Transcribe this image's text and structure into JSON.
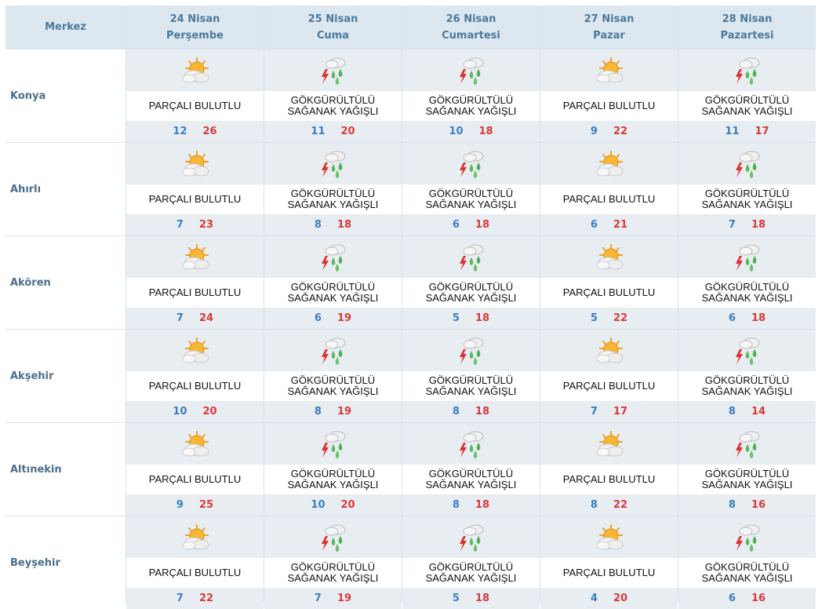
{
  "header": {
    "region": "Merkez",
    "days": [
      {
        "date": "24 Nisan",
        "weekday": "Perşembe"
      },
      {
        "date": "25 Nisan",
        "weekday": "Cuma"
      },
      {
        "date": "26 Nisan",
        "weekday": "Cumartesi"
      },
      {
        "date": "27 Nisan",
        "weekday": "Pazar"
      },
      {
        "date": "28 Nisan",
        "weekday": "Pazartesi"
      }
    ]
  },
  "icons": {
    "partly_cloudy": "partly-cloudy-icon",
    "thunderstorm": "thunderstorm-icon"
  },
  "colors": {
    "min_temp": "#3b7fc0",
    "max_temp": "#d83a3a",
    "header_bg": "#dde7ef",
    "band_bg": "#e8edf2"
  },
  "rows": [
    {
      "city": "Konya",
      "days": [
        {
          "icon": "partly_cloudy",
          "condition": "PARÇALI BULUTLU",
          "min": "12",
          "max": "26"
        },
        {
          "icon": "thunderstorm",
          "condition": "GÖKGÜRÜLTÜLÜ\nSAĞANAK YAĞIŞLI",
          "min": "11",
          "max": "20"
        },
        {
          "icon": "thunderstorm",
          "condition": "GÖKGÜRÜLTÜLÜ\nSAĞANAK YAĞIŞLI",
          "min": "10",
          "max": "18"
        },
        {
          "icon": "partly_cloudy",
          "condition": "PARÇALI BULUTLU",
          "min": "9",
          "max": "22"
        },
        {
          "icon": "thunderstorm",
          "condition": "GÖKGÜRÜLTÜLÜ\nSAĞANAK YAĞIŞLI",
          "min": "11",
          "max": "17"
        }
      ]
    },
    {
      "city": "Ahırlı",
      "days": [
        {
          "icon": "partly_cloudy",
          "condition": "PARÇALI BULUTLU",
          "min": "7",
          "max": "23"
        },
        {
          "icon": "thunderstorm",
          "condition": "GÖKGÜRÜLTÜLÜ\nSAĞANAK YAĞIŞLI",
          "min": "8",
          "max": "18"
        },
        {
          "icon": "thunderstorm",
          "condition": "GÖKGÜRÜLTÜLÜ\nSAĞANAK YAĞIŞLI",
          "min": "6",
          "max": "18"
        },
        {
          "icon": "partly_cloudy",
          "condition": "PARÇALI BULUTLU",
          "min": "6",
          "max": "21"
        },
        {
          "icon": "thunderstorm",
          "condition": "GÖKGÜRÜLTÜLÜ\nSAĞANAK YAĞIŞLI",
          "min": "7",
          "max": "18"
        }
      ]
    },
    {
      "city": "Akören",
      "days": [
        {
          "icon": "partly_cloudy",
          "condition": "PARÇALI BULUTLU",
          "min": "7",
          "max": "24"
        },
        {
          "icon": "thunderstorm",
          "condition": "GÖKGÜRÜLTÜLÜ\nSAĞANAK YAĞIŞLI",
          "min": "6",
          "max": "19"
        },
        {
          "icon": "thunderstorm",
          "condition": "GÖKGÜRÜLTÜLÜ\nSAĞANAK YAĞIŞLI",
          "min": "5",
          "max": "18"
        },
        {
          "icon": "partly_cloudy",
          "condition": "PARÇALI BULUTLU",
          "min": "5",
          "max": "22"
        },
        {
          "icon": "thunderstorm",
          "condition": "GÖKGÜRÜLTÜLÜ\nSAĞANAK YAĞIŞLI",
          "min": "6",
          "max": "18"
        }
      ]
    },
    {
      "city": "Akşehir",
      "days": [
        {
          "icon": "partly_cloudy",
          "condition": "PARÇALI BULUTLU",
          "min": "10",
          "max": "20"
        },
        {
          "icon": "thunderstorm",
          "condition": "GÖKGÜRÜLTÜLÜ\nSAĞANAK YAĞIŞLI",
          "min": "8",
          "max": "19"
        },
        {
          "icon": "thunderstorm",
          "condition": "GÖKGÜRÜLTÜLÜ\nSAĞANAK YAĞIŞLI",
          "min": "8",
          "max": "18"
        },
        {
          "icon": "partly_cloudy",
          "condition": "PARÇALI BULUTLU",
          "min": "7",
          "max": "17"
        },
        {
          "icon": "thunderstorm",
          "condition": "GÖKGÜRÜLTÜLÜ\nSAĞANAK YAĞIŞLI",
          "min": "8",
          "max": "14"
        }
      ]
    },
    {
      "city": "Altınekin",
      "days": [
        {
          "icon": "partly_cloudy",
          "condition": "PARÇALI BULUTLU",
          "min": "9",
          "max": "25"
        },
        {
          "icon": "thunderstorm",
          "condition": "GÖKGÜRÜLTÜLÜ\nSAĞANAK YAĞIŞLI",
          "min": "10",
          "max": "20"
        },
        {
          "icon": "thunderstorm",
          "condition": "GÖKGÜRÜLTÜLÜ\nSAĞANAK YAĞIŞLI",
          "min": "8",
          "max": "18"
        },
        {
          "icon": "partly_cloudy",
          "condition": "PARÇALI BULUTLU",
          "min": "8",
          "max": "22"
        },
        {
          "icon": "thunderstorm",
          "condition": "GÖKGÜRÜLTÜLÜ\nSAĞANAK YAĞIŞLI",
          "min": "8",
          "max": "16"
        }
      ]
    },
    {
      "city": "Beyşehir",
      "days": [
        {
          "icon": "partly_cloudy",
          "condition": "PARÇALI BULUTLU",
          "min": "7",
          "max": "22"
        },
        {
          "icon": "thunderstorm",
          "condition": "GÖKGÜRÜLTÜLÜ\nSAĞANAK YAĞIŞLI",
          "min": "7",
          "max": "19"
        },
        {
          "icon": "thunderstorm",
          "condition": "GÖKGÜRÜLTÜLÜ\nSAĞANAK YAĞIŞLI",
          "min": "5",
          "max": "18"
        },
        {
          "icon": "partly_cloudy",
          "condition": "PARÇALI BULUTLU",
          "min": "4",
          "max": "20"
        },
        {
          "icon": "thunderstorm",
          "condition": "GÖKGÜRÜLTÜLÜ\nSAĞANAK YAĞIŞLI",
          "min": "6",
          "max": "16"
        }
      ]
    }
  ]
}
